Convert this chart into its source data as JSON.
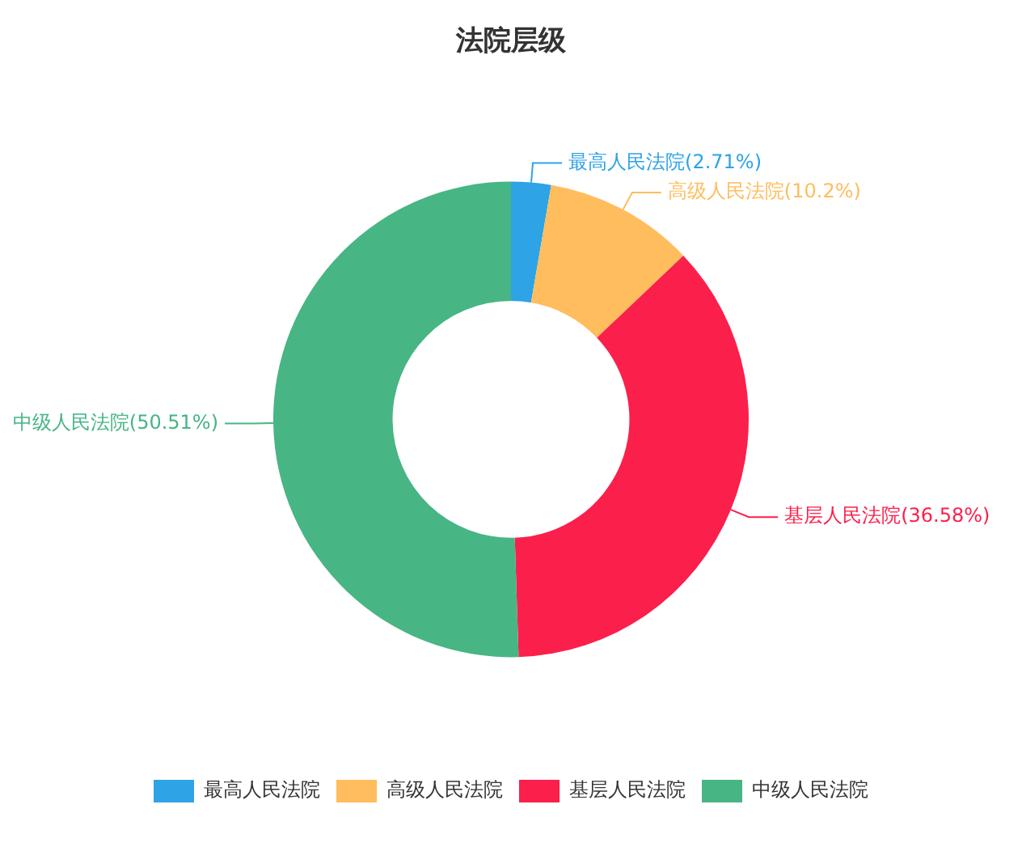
{
  "chart_data": {
    "type": "donut",
    "title": "法院层级",
    "categories": [
      "最高人民法院",
      "高级人民法院",
      "基层人民法院",
      "中级人民法院"
    ],
    "values": [
      2.71,
      10.2,
      36.58,
      50.51
    ],
    "value_labels": [
      "最高人民法院(2.71%)",
      "高级人民法院(10.2%)",
      "基层人民法院(36.58%)",
      "中级人民法院(50.51%)"
    ],
    "colors": [
      "#2ea3e6",
      "#ffbd5e",
      "#fb1f4b",
      "#47b584"
    ],
    "legend": "bottom"
  }
}
